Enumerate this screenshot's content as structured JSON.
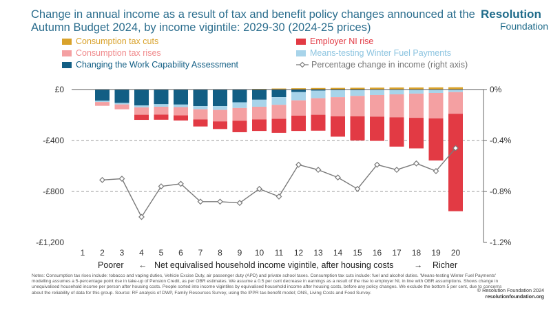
{
  "title": "Change in annual income as a result of tax and benefit policy changes announced at the Autumn Budget 2024, by income vigintile: 2029-30 (2024-25 prices)",
  "brand": {
    "line1": "Resolution",
    "line2": "Foundation"
  },
  "colors": {
    "consumption_cuts": "#d9a22b",
    "employer_ni": "#e23a44",
    "consumption_rises": "#f4a0a2",
    "winter_fuel": "#a8d4ea",
    "work_capability": "#125e84",
    "pct_line": "#7a7a7a",
    "title": "#2c6e8e"
  },
  "legend": [
    {
      "key": "consumption_cuts",
      "label": "Consumption tax cuts",
      "color": "#d9a22b",
      "text_color": "#d9a22b"
    },
    {
      "key": "employer_ni",
      "label": "Employer NI rise",
      "color": "#e23a44",
      "text_color": "#e23a44"
    },
    {
      "key": "consumption_rises",
      "label": "Consumption tax rises",
      "color": "#f4a0a2",
      "text_color": "#f08a8c"
    },
    {
      "key": "winter_fuel",
      "label": "Means-testing Winter Fuel Payments",
      "color": "#a8d4ea",
      "text_color": "#8cc4e0"
    },
    {
      "key": "work_capability",
      "label": "Changing the Work Capability Assessment",
      "color": "#125e84",
      "text_color": "#125e84"
    },
    {
      "key": "pct_line",
      "label": "Percentage change in income (right axis)",
      "color": "#7a7a7a",
      "text_color": "#777777"
    }
  ],
  "chart_data": {
    "type": "bar",
    "stacked": true,
    "categories": [
      "1",
      "2",
      "3",
      "4",
      "5",
      "6",
      "7",
      "8",
      "9",
      "10",
      "11",
      "12",
      "13",
      "14",
      "15",
      "16",
      "17",
      "18",
      "19",
      "20"
    ],
    "series": [
      {
        "name": "Consumption tax cuts",
        "key": "consumption_cuts",
        "values": [
          0,
          0,
          0,
          0,
          0,
          0,
          0,
          0,
          2,
          5,
          8,
          10,
          12,
          13,
          14,
          15,
          16,
          16,
          17,
          18
        ]
      },
      {
        "name": "Changing the Work Capability Assessment",
        "key": "work_capability",
        "values": [
          0,
          -88,
          -105,
          -125,
          -115,
          -118,
          -130,
          -130,
          -100,
          -80,
          -60,
          -20,
          -8,
          -5,
          -5,
          -3,
          -3,
          -2,
          -2,
          0
        ]
      },
      {
        "name": "Means-testing Winter Fuel Payments",
        "key": "winter_fuel",
        "values": [
          0,
          -10,
          -12,
          -15,
          -20,
          -20,
          -25,
          -30,
          -45,
          -55,
          -60,
          -65,
          -60,
          -55,
          -45,
          -40,
          -35,
          -30,
          -25,
          -20
        ]
      },
      {
        "name": "Consumption tax rises",
        "key": "consumption_rises",
        "values": [
          0,
          -30,
          -38,
          -58,
          -62,
          -65,
          -80,
          -90,
          -100,
          -100,
          -110,
          -120,
          -130,
          -150,
          -160,
          -170,
          -180,
          -190,
          -200,
          -170
        ]
      },
      {
        "name": "Employer NI rise",
        "key": "employer_ni",
        "values": [
          0,
          0,
          0,
          -40,
          -40,
          -40,
          -55,
          -60,
          -90,
          -90,
          -110,
          -120,
          -125,
          -160,
          -190,
          -190,
          -230,
          -240,
          -330,
          -765
        ]
      }
    ],
    "line": {
      "name": "Percentage change in income (right axis)",
      "axis": "right",
      "x": [
        "2",
        "3",
        "4",
        "5",
        "6",
        "7",
        "8",
        "9",
        "10",
        "11",
        "12",
        "13",
        "14",
        "15",
        "16",
        "17",
        "18",
        "19",
        "20"
      ],
      "values": [
        -0.71,
        -0.7,
        -1.0,
        -0.76,
        -0.74,
        -0.88,
        -0.88,
        -0.89,
        -0.78,
        -0.84,
        -0.59,
        -0.63,
        -0.69,
        -0.78,
        -0.59,
        -0.63,
        -0.58,
        -0.64,
        -0.46
      ]
    },
    "ylim": [
      -1200,
      0
    ],
    "y2lim": [
      -1.2,
      0
    ],
    "yticks": [
      {
        "v": 0,
        "label": "£0"
      },
      {
        "v": -400,
        "label": "-£400"
      },
      {
        "v": -800,
        "label": "-£800"
      },
      {
        "v": -1200,
        "label": "-£1,200"
      }
    ],
    "y2ticks": [
      {
        "v": 0,
        "label": "0%"
      },
      {
        "v": -0.4,
        "label": "-0.4%"
      },
      {
        "v": -0.8,
        "label": "-0.8%"
      },
      {
        "v": -1.2,
        "label": "-1.2%"
      }
    ],
    "gridlines": [
      -400,
      -800
    ],
    "xlabel": {
      "left": "Poorer",
      "arrow_left": "←",
      "middle": "Net equivalised household income vigintile, after housing costs",
      "arrow_right": "→",
      "right": "Richer"
    }
  },
  "notes": "Notes: Consumption tax rises include: tobacco and vaping duties, Vehicle Excise Duty, air passenger duty (APD) and private school taxes. Consumption tax cuts include: fuel and alcohol duties. 'Means-testing Winter Fuel Payments' modelling assumes a 5-percentage point rise in take-up of Pension Credit, as per OBR estimates. We assume a 0.5 per cent decrease in earnings as a result of the rise to employer NI, in line with OBR assumptions. Shows change in unequivalised household income per person after housing costs. People sorted into income vigintiles by equivalised household income after housing costs, before any policy changes. We exclude the bottom 5 per cent, due to concerns about the reliability of data for this group. Source: RF analysis of DWP, Family Resources Survey, using the IPPR tax-benefit model; ONS, Living Costs and Food Survey.",
  "copyright": {
    "line1": "© Resolution Foundation 2024",
    "line2": "resolutionfoundation.org"
  }
}
